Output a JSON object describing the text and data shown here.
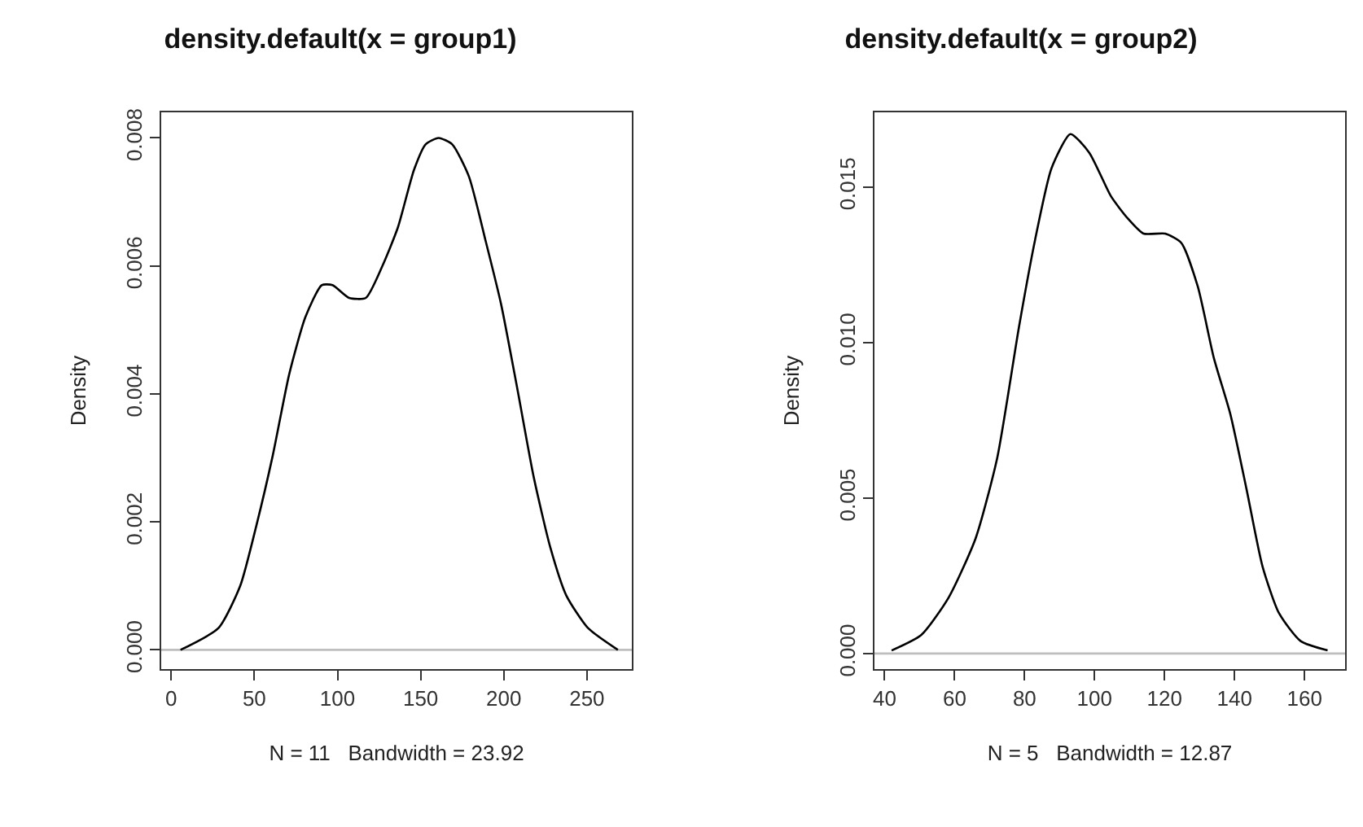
{
  "chart_data": [
    {
      "type": "line",
      "title": "density.default(x = group1)",
      "xlabel": "N = 11   Bandwidth = 23.92",
      "ylabel": "Density",
      "xlim": [
        -6,
        277
      ],
      "xticks": [
        0,
        50,
        100,
        150,
        200,
        250
      ],
      "ylim": [
        -0.0003,
        0.0084
      ],
      "yticks": [
        {
          "value": 0,
          "label": "0.000"
        },
        {
          "value": 0.002,
          "label": "0.002"
        },
        {
          "value": 0.004,
          "label": "0.004"
        },
        {
          "value": 0.006,
          "label": "0.006"
        },
        {
          "value": 0.008,
          "label": "0.008"
        }
      ],
      "grid": false,
      "marker": "none",
      "line_style": "solid",
      "ref_lines": [
        {
          "axis": "y",
          "value": 0,
          "color": "#bebebe"
        }
      ],
      "series": [
        {
          "color": "#000000",
          "x": [
            5.6,
            28.4,
            41.5,
            51.3,
            61.1,
            70.9,
            80.7,
            90.5,
            97,
            107,
            117,
            127,
            136.3,
            146,
            153,
            160.8,
            169,
            179,
            189,
            198.4,
            208,
            218,
            228,
            237.6,
            250.7,
            268.6
          ],
          "values": [
            0.0,
            0.00034,
            0.001,
            0.00195,
            0.00304,
            0.0043,
            0.0052,
            0.0057,
            0.0057,
            0.0055,
            0.0055,
            0.006,
            0.0066,
            0.0075,
            0.0079,
            0.008,
            0.0079,
            0.0074,
            0.0064,
            0.0054,
            0.0041,
            0.0027,
            0.0016,
            0.00085,
            0.00034,
            0.0
          ]
        }
      ]
    },
    {
      "type": "line",
      "title": "density.default(x = group2)",
      "xlabel": "N = 5   Bandwidth = 12.87",
      "ylabel": "Density",
      "xlim": [
        37.1,
        171.6
      ],
      "xticks": [
        40,
        60,
        80,
        100,
        120,
        140,
        160
      ],
      "ylim": [
        -0.0005,
        0.0174
      ],
      "yticks": [
        {
          "value": 0,
          "label": "0.000"
        },
        {
          "value": 0.005,
          "label": "0.005"
        },
        {
          "value": 0.01,
          "label": "0.010"
        },
        {
          "value": 0.015,
          "label": "0.015"
        }
      ],
      "grid": false,
      "marker": "none",
      "line_style": "solid",
      "ref_lines": [
        {
          "axis": "y",
          "value": 0,
          "color": "#bebebe"
        }
      ],
      "series": [
        {
          "color": "#000000",
          "x": [
            42,
            50.5,
            58.3,
            66,
            72.2,
            78.4,
            83,
            87.7,
            93.1,
            98.5,
            104.7,
            109.4,
            114,
            120.2,
            124.8,
            129.5,
            134.1,
            138.8,
            143.4,
            148,
            152.7,
            158.9,
            166.6
          ],
          "values": [
            0.0001,
            0.0006,
            0.0018,
            0.0037,
            0.0063,
            0.0105,
            0.0133,
            0.0156,
            0.0167,
            0.0161,
            0.0147,
            0.014,
            0.0135,
            0.0135,
            0.0132,
            0.0118,
            0.0095,
            0.0077,
            0.0053,
            0.0028,
            0.0013,
            0.0004,
            0.0001
          ]
        }
      ]
    }
  ]
}
